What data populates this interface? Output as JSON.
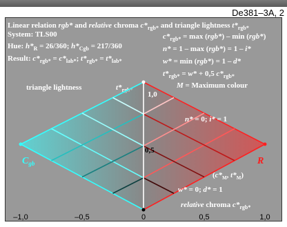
{
  "header": {
    "code": "De381–3A, 2"
  },
  "info": {
    "line1": "Linear relation rgb* and relative chroma c*rgb* and triangle lightness t*rgb*",
    "line2": "System: TLS00",
    "line3": "Hue: h*R = 26/360; h*Cgb = 217/360",
    "line4": "Result: c*rgb* = c*lab*; t*rgb* = t*lab*"
  },
  "formulas": {
    "f1": "c*rgb* = max (rgb*) – min (rgb*)",
    "f2": "n* = 1 – max (rgb*) = 1 – i*",
    "f3": "w* = min (rgb*) = 1 – d*",
    "f4": "t*rgb* = w* + 0,5 c*rgb*",
    "f5": "M = Maximum colour"
  },
  "labels": {
    "triangle_lightness": "triangle lightness",
    "t_axis": "t*rgb*",
    "t_top": "1,0",
    "t_mid": "0,5",
    "n_i": "n* = 0; i* = 1",
    "cm_tm": "(c*M, t*M)",
    "w_d": "w* = 0; d* = 1",
    "relative_chroma": "relative chroma  c*rgb*",
    "left_color": "Cgb",
    "right_color": "R"
  },
  "x_ticks": [
    "–1,0",
    "–0,5",
    "0",
    "0,5",
    "1,0"
  ],
  "colors": {
    "panel": "#999999",
    "cyan": "#33ffff",
    "red": "#ff1a1a",
    "white": "#ffffff",
    "black": "#000000"
  }
}
